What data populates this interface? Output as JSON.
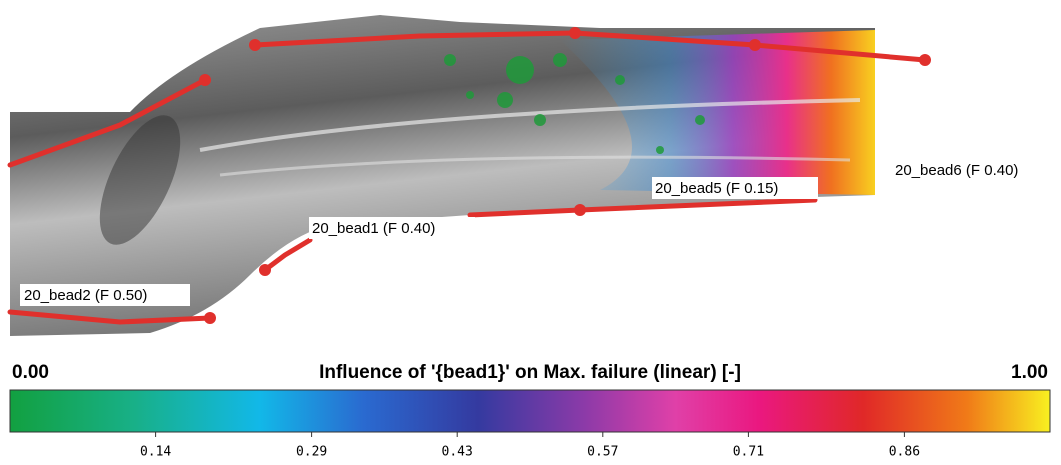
{
  "labels": [
    "20_bead2 (F 0.50)",
    "20_bead1 (F 0.40)",
    "20_bead5 (F 0.15)",
    "20_bead6 (F 0.40)"
  ],
  "colorbar": {
    "title": "Influence of '{bead1}' on Max. failure (linear) [-]",
    "min": {
      "value": 0,
      "label": "0.00"
    },
    "max": {
      "value": 1,
      "label": "1.00"
    },
    "ticks": [
      0.14,
      0.29,
      0.43,
      0.57,
      0.71,
      0.86
    ]
  }
}
